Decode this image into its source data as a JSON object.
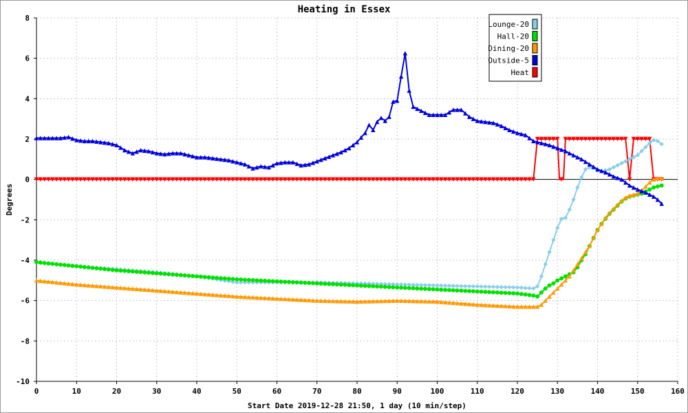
{
  "chart_data": {
    "type": "line",
    "title": "Heating in Essex",
    "xlabel": "Start Date 2019-12-28 21:50, 1 day (10 min/step)",
    "ylabel": "Degrees",
    "xlim": [
      0,
      160
    ],
    "ylim": [
      -10,
      8
    ],
    "x_ticks": [
      0,
      10,
      20,
      30,
      40,
      50,
      60,
      70,
      80,
      90,
      100,
      110,
      120,
      130,
      140,
      150,
      160
    ],
    "y_ticks": [
      -10,
      -8,
      -6,
      -4,
      -2,
      0,
      2,
      4,
      6,
      8
    ],
    "grid": true,
    "legend_position": "top-right",
    "series": [
      {
        "name": "Lounge-20",
        "color": "#87ceeb",
        "marker": "diamond",
        "points": [
          [
            0,
            -4.1
          ],
          [
            10,
            -4.3
          ],
          [
            20,
            -4.45
          ],
          [
            30,
            -4.6
          ],
          [
            40,
            -4.8
          ],
          [
            45,
            -4.95
          ],
          [
            50,
            -5.1
          ],
          [
            60,
            -5.1
          ],
          [
            70,
            -5.1
          ],
          [
            80,
            -5.15
          ],
          [
            90,
            -5.2
          ],
          [
            100,
            -5.25
          ],
          [
            110,
            -5.3
          ],
          [
            120,
            -5.35
          ],
          [
            124,
            -5.4
          ],
          [
            125,
            -5.3
          ],
          [
            126,
            -4.8
          ],
          [
            127,
            -4.2
          ],
          [
            128,
            -3.6
          ],
          [
            129,
            -3.0
          ],
          [
            130,
            -2.4
          ],
          [
            131,
            -1.95
          ],
          [
            132,
            -1.9
          ],
          [
            133,
            -1.5
          ],
          [
            134,
            -1.0
          ],
          [
            135,
            -0.4
          ],
          [
            136,
            0.1
          ],
          [
            137,
            0.5
          ],
          [
            138,
            0.6
          ],
          [
            139,
            0.55
          ],
          [
            140,
            0.45
          ],
          [
            141,
            0.4
          ],
          [
            142,
            0.45
          ],
          [
            143,
            0.5
          ],
          [
            144,
            0.6
          ],
          [
            145,
            0.7
          ],
          [
            146,
            0.8
          ],
          [
            147,
            0.9
          ],
          [
            148,
            1.0
          ],
          [
            149,
            1.1
          ],
          [
            150,
            1.2
          ],
          [
            151,
            1.4
          ],
          [
            152,
            1.6
          ],
          [
            153,
            1.8
          ],
          [
            154,
            1.95
          ],
          [
            155,
            1.9
          ],
          [
            156,
            1.75
          ]
        ]
      },
      {
        "name": "Hall-20",
        "color": "#00e000",
        "marker": "circle",
        "points": [
          [
            0,
            -4.1
          ],
          [
            10,
            -4.3
          ],
          [
            20,
            -4.5
          ],
          [
            30,
            -4.65
          ],
          [
            40,
            -4.8
          ],
          [
            50,
            -4.95
          ],
          [
            60,
            -5.05
          ],
          [
            70,
            -5.15
          ],
          [
            80,
            -5.25
          ],
          [
            90,
            -5.35
          ],
          [
            100,
            -5.45
          ],
          [
            110,
            -5.55
          ],
          [
            120,
            -5.65
          ],
          [
            124,
            -5.75
          ],
          [
            125,
            -5.8
          ],
          [
            126,
            -5.6
          ],
          [
            127,
            -5.4
          ],
          [
            128,
            -5.25
          ],
          [
            129,
            -5.15
          ],
          [
            130,
            -5.0
          ],
          [
            131,
            -4.9
          ],
          [
            132,
            -4.8
          ],
          [
            133,
            -4.7
          ],
          [
            134,
            -4.6
          ],
          [
            135,
            -4.35
          ],
          [
            136,
            -4.0
          ],
          [
            137,
            -3.7
          ],
          [
            138,
            -3.3
          ],
          [
            139,
            -2.9
          ],
          [
            140,
            -2.5
          ],
          [
            141,
            -2.2
          ],
          [
            142,
            -1.95
          ],
          [
            143,
            -1.7
          ],
          [
            144,
            -1.5
          ],
          [
            145,
            -1.3
          ],
          [
            146,
            -1.1
          ],
          [
            147,
            -0.95
          ],
          [
            148,
            -0.85
          ],
          [
            149,
            -0.8
          ],
          [
            150,
            -0.75
          ],
          [
            151,
            -0.7
          ],
          [
            152,
            -0.6
          ],
          [
            153,
            -0.5
          ],
          [
            154,
            -0.4
          ],
          [
            155,
            -0.35
          ],
          [
            156,
            -0.3
          ]
        ]
      },
      {
        "name": "Dining-20",
        "color": "#ff9900",
        "marker": "triangle-up",
        "points": [
          [
            0,
            -5.0
          ],
          [
            10,
            -5.2
          ],
          [
            20,
            -5.35
          ],
          [
            30,
            -5.5
          ],
          [
            40,
            -5.65
          ],
          [
            50,
            -5.8
          ],
          [
            60,
            -5.9
          ],
          [
            70,
            -6.0
          ],
          [
            80,
            -6.05
          ],
          [
            90,
            -6.0
          ],
          [
            100,
            -6.05
          ],
          [
            110,
            -6.2
          ],
          [
            120,
            -6.3
          ],
          [
            124,
            -6.3
          ],
          [
            125,
            -6.3
          ],
          [
            126,
            -6.2
          ],
          [
            127,
            -6.0
          ],
          [
            128,
            -5.8
          ],
          [
            129,
            -5.6
          ],
          [
            130,
            -5.4
          ],
          [
            131,
            -5.2
          ],
          [
            132,
            -5.0
          ],
          [
            133,
            -4.8
          ],
          [
            134,
            -4.5
          ],
          [
            135,
            -4.2
          ],
          [
            136,
            -3.9
          ],
          [
            137,
            -3.6
          ],
          [
            138,
            -3.3
          ],
          [
            139,
            -2.9
          ],
          [
            140,
            -2.5
          ],
          [
            141,
            -2.2
          ],
          [
            142,
            -1.9
          ],
          [
            143,
            -1.65
          ],
          [
            144,
            -1.45
          ],
          [
            145,
            -1.25
          ],
          [
            146,
            -1.05
          ],
          [
            147,
            -0.9
          ],
          [
            148,
            -0.8
          ],
          [
            149,
            -0.75
          ],
          [
            150,
            -0.7
          ],
          [
            151,
            -0.55
          ],
          [
            152,
            -0.35
          ],
          [
            153,
            -0.15
          ],
          [
            154,
            0.0
          ],
          [
            155,
            0.05
          ],
          [
            156,
            0.05
          ]
        ]
      },
      {
        "name": "Outside-5",
        "color": "#0000dd",
        "marker": "triangle-up",
        "points": [
          [
            0,
            2.05
          ],
          [
            2,
            2.05
          ],
          [
            4,
            2.05
          ],
          [
            6,
            2.05
          ],
          [
            8,
            2.1
          ],
          [
            10,
            1.95
          ],
          [
            12,
            1.9
          ],
          [
            14,
            1.9
          ],
          [
            16,
            1.85
          ],
          [
            18,
            1.8
          ],
          [
            20,
            1.7
          ],
          [
            22,
            1.45
          ],
          [
            24,
            1.3
          ],
          [
            26,
            1.45
          ],
          [
            28,
            1.4
          ],
          [
            30,
            1.3
          ],
          [
            32,
            1.25
          ],
          [
            34,
            1.3
          ],
          [
            36,
            1.3
          ],
          [
            38,
            1.2
          ],
          [
            40,
            1.1
          ],
          [
            42,
            1.1
          ],
          [
            44,
            1.05
          ],
          [
            46,
            1.0
          ],
          [
            48,
            0.95
          ],
          [
            50,
            0.85
          ],
          [
            52,
            0.75
          ],
          [
            54,
            0.55
          ],
          [
            56,
            0.65
          ],
          [
            58,
            0.6
          ],
          [
            60,
            0.8
          ],
          [
            62,
            0.85
          ],
          [
            64,
            0.85
          ],
          [
            66,
            0.7
          ],
          [
            68,
            0.75
          ],
          [
            70,
            0.9
          ],
          [
            72,
            1.05
          ],
          [
            74,
            1.2
          ],
          [
            76,
            1.35
          ],
          [
            78,
            1.55
          ],
          [
            80,
            1.85
          ],
          [
            82,
            2.3
          ],
          [
            83,
            2.7
          ],
          [
            84,
            2.45
          ],
          [
            85,
            2.85
          ],
          [
            86,
            3.05
          ],
          [
            87,
            2.9
          ],
          [
            88,
            3.1
          ],
          [
            89,
            3.85
          ],
          [
            90,
            3.9
          ],
          [
            91,
            5.1
          ],
          [
            92,
            6.25
          ],
          [
            93,
            4.4
          ],
          [
            94,
            3.6
          ],
          [
            96,
            3.4
          ],
          [
            98,
            3.2
          ],
          [
            100,
            3.2
          ],
          [
            102,
            3.2
          ],
          [
            104,
            3.45
          ],
          [
            106,
            3.45
          ],
          [
            108,
            3.1
          ],
          [
            110,
            2.9
          ],
          [
            112,
            2.85
          ],
          [
            114,
            2.8
          ],
          [
            116,
            2.65
          ],
          [
            118,
            2.45
          ],
          [
            120,
            2.3
          ],
          [
            122,
            2.2
          ],
          [
            124,
            1.9
          ],
          [
            126,
            1.8
          ],
          [
            128,
            1.7
          ],
          [
            130,
            1.55
          ],
          [
            132,
            1.4
          ],
          [
            134,
            1.2
          ],
          [
            136,
            1.0
          ],
          [
            138,
            0.75
          ],
          [
            140,
            0.5
          ],
          [
            142,
            0.35
          ],
          [
            144,
            0.15
          ],
          [
            146,
            0.0
          ],
          [
            148,
            -0.3
          ],
          [
            150,
            -0.5
          ],
          [
            152,
            -0.65
          ],
          [
            154,
            -0.85
          ],
          [
            155,
            -1.0
          ],
          [
            156,
            -1.2
          ]
        ]
      },
      {
        "name": "Heat",
        "color": "#ff0000",
        "marker": "triangle-down",
        "points": [
          [
            0,
            0
          ],
          [
            124,
            0
          ],
          [
            125,
            2.0
          ],
          [
            130,
            2.0
          ],
          [
            130.5,
            0
          ],
          [
            131.5,
            0
          ],
          [
            132,
            2.0
          ],
          [
            147,
            2.0
          ],
          [
            148,
            0
          ],
          [
            149,
            2.0
          ],
          [
            153,
            2.0
          ],
          [
            154,
            0
          ],
          [
            156,
            0
          ]
        ]
      }
    ]
  }
}
